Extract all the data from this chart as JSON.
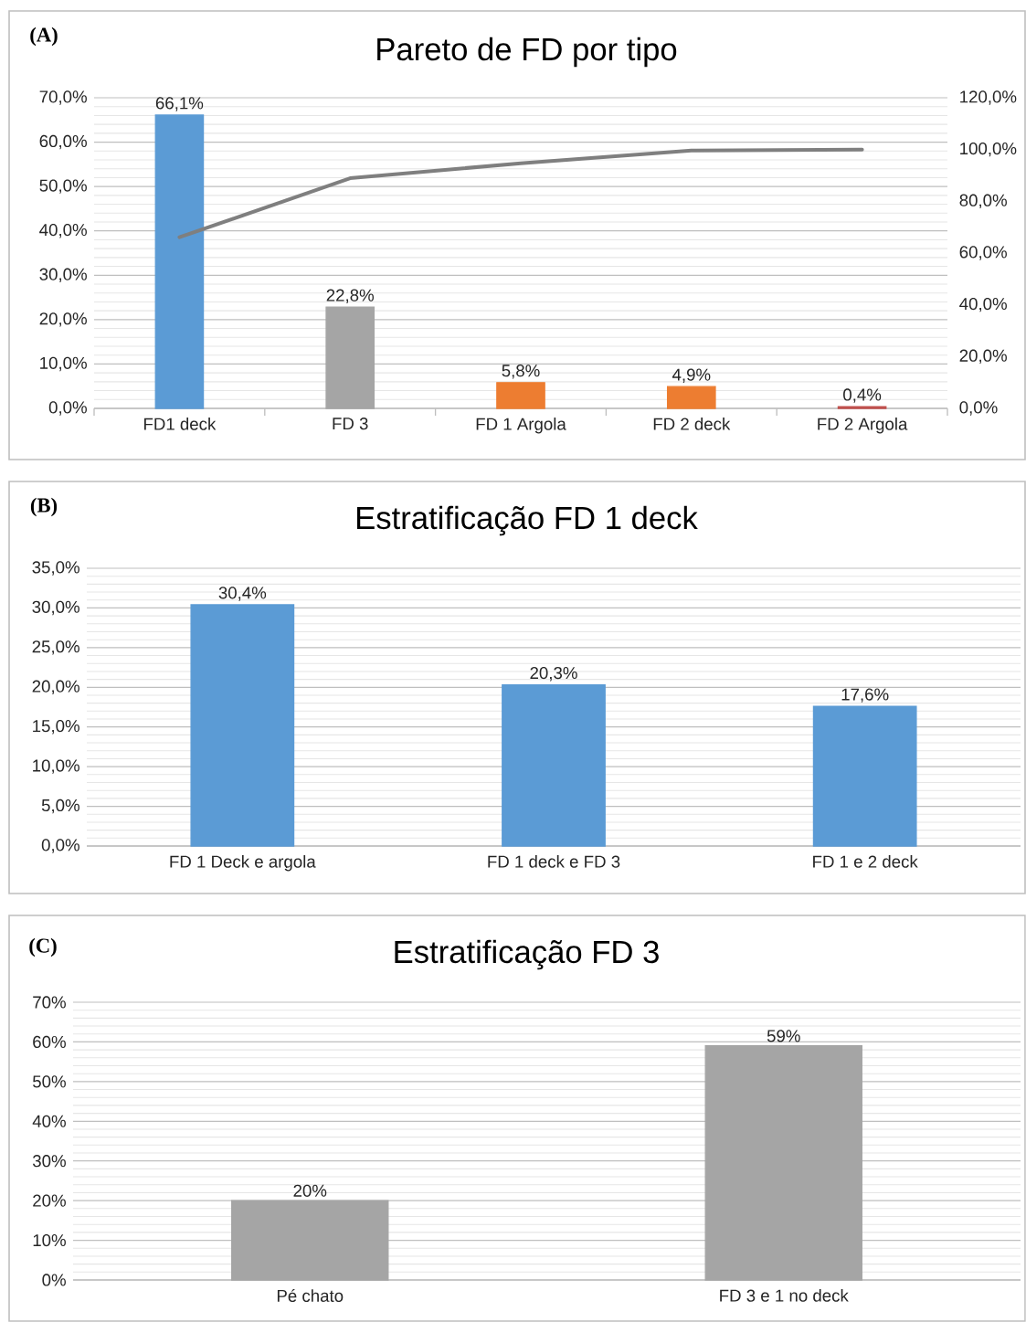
{
  "chart_data": [
    {
      "type": "bar",
      "title": "Pareto de FD por tipo",
      "annotations": [
        "(A)"
      ],
      "categories": [
        "FD1 deck",
        "FD 3",
        "FD 1 Argola",
        "FD 2 deck",
        "FD 2 Argola"
      ],
      "series": [
        {
          "values": [
            66.1,
            22.8,
            5.8,
            4.9,
            0.4
          ],
          "colors": [
            "#5b9bd5",
            "#a5a5a5",
            "#ed7d31",
            "#ed7d31",
            "#c0504d"
          ],
          "value_labels": [
            "66,1%",
            "22,8%",
            "5,8%",
            "4,9%",
            "0,4%"
          ]
        },
        {
          "type": "line",
          "axis": "y2",
          "color": "#7f7f7f",
          "values": [
            66.1,
            88.9,
            94.7,
            99.6,
            100
          ]
        }
      ],
      "ylim": [
        0,
        70
      ],
      "yticks": [
        {
          "value": 0,
          "label": "0,0%"
        },
        {
          "value": 10,
          "label": "10,0%"
        },
        {
          "value": 20,
          "label": "20,0%"
        },
        {
          "value": 30,
          "label": "30,0%"
        },
        {
          "value": 40,
          "label": "40,0%"
        },
        {
          "value": 50,
          "label": "50,0%"
        },
        {
          "value": 60,
          "label": "60,0%"
        },
        {
          "value": 70,
          "label": "70,0%"
        }
      ],
      "y2lim": [
        0,
        120
      ],
      "y2ticks": [
        {
          "value": 0,
          "label": "0,0%"
        },
        {
          "value": 20,
          "label": "20,0%"
        },
        {
          "value": 40,
          "label": "40,0%"
        },
        {
          "value": 60,
          "label": "60,0%"
        },
        {
          "value": 80,
          "label": "80,0%"
        },
        {
          "value": 100,
          "label": "100,0%"
        },
        {
          "value": 120,
          "label": "120,0%"
        }
      ],
      "grid": "y"
    },
    {
      "type": "bar",
      "title": "Estratificação FD 1 deck",
      "annotations": [
        "(B)"
      ],
      "categories": [
        "FD 1  Deck e argola",
        "FD 1 deck e  FD 3",
        "FD 1 e 2  deck"
      ],
      "series": [
        {
          "values": [
            30.4,
            20.3,
            17.6
          ],
          "color": "#5b9bd5",
          "value_labels": [
            "30,4%",
            "20,3%",
            "17,6%"
          ]
        }
      ],
      "ylim": [
        0,
        35
      ],
      "yticks": [
        {
          "value": 0,
          "label": "0,0%"
        },
        {
          "value": 5,
          "label": "5,0%"
        },
        {
          "value": 10,
          "label": "10,0%"
        },
        {
          "value": 15,
          "label": "15,0%"
        },
        {
          "value": 20,
          "label": "20,0%"
        },
        {
          "value": 25,
          "label": "25,0%"
        },
        {
          "value": 30,
          "label": "30,0%"
        },
        {
          "value": 35,
          "label": "35,0%"
        }
      ],
      "grid": "y"
    },
    {
      "type": "bar",
      "title": "Estratificação FD 3",
      "annotations": [
        "(C)"
      ],
      "categories": [
        "Pé chato",
        "FD 3 e 1 no deck"
      ],
      "series": [
        {
          "values": [
            20,
            59
          ],
          "color": "#a5a5a5",
          "value_labels": [
            "20%",
            "59%"
          ]
        }
      ],
      "ylim": [
        0,
        70
      ],
      "yticks": [
        {
          "value": 0,
          "label": "0%"
        },
        {
          "value": 10,
          "label": "10%"
        },
        {
          "value": 20,
          "label": "20%"
        },
        {
          "value": 30,
          "label": "30%"
        },
        {
          "value": 40,
          "label": "40%"
        },
        {
          "value": 50,
          "label": "50%"
        },
        {
          "value": 60,
          "label": "60%"
        },
        {
          "value": 70,
          "label": "70%"
        }
      ],
      "grid": "y"
    }
  ]
}
